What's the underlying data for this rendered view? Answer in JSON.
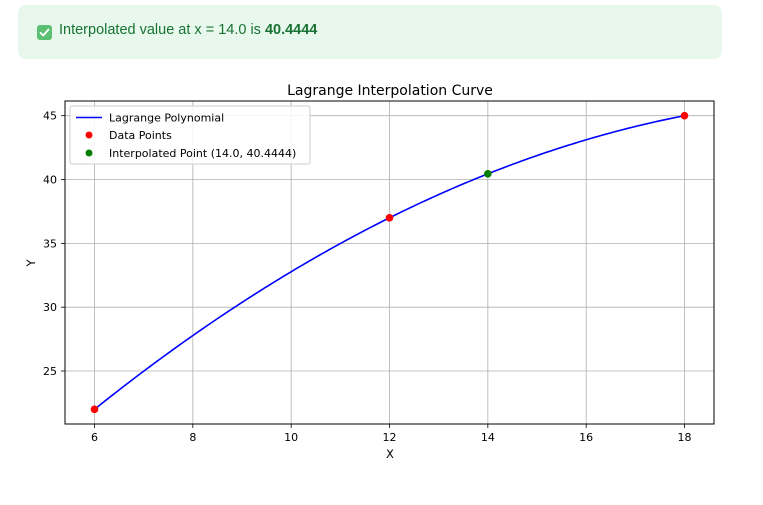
{
  "alert": {
    "icon": "check-square-icon",
    "prefix": "Interpolated value at x = 14.0 is ",
    "value": "40.4444",
    "bg_color": "#e8f8ec",
    "text_color": "#177233"
  },
  "chart_data": {
    "type": "line",
    "title": "Lagrange Interpolation Curve",
    "xlabel": "X",
    "ylabel": "Y",
    "xlim": [
      5.4,
      18.6
    ],
    "ylim": [
      20.85,
      46.15
    ],
    "xticks": [
      6,
      8,
      10,
      12,
      14,
      16,
      18
    ],
    "yticks": [
      25,
      30,
      35,
      40,
      45
    ],
    "grid": true,
    "legend_position": "top-left",
    "series": [
      {
        "name": "Lagrange Polynomial",
        "kind": "line",
        "color": "#0000ff",
        "points": [
          [
            6,
            22
          ],
          [
            12,
            37
          ],
          [
            18,
            45
          ]
        ],
        "description": "quadratic through data points"
      },
      {
        "name": "Data Points",
        "kind": "scatter",
        "color": "#ff0000",
        "x": [
          6,
          12,
          18
        ],
        "y": [
          22,
          37,
          45
        ]
      },
      {
        "name": "Interpolated Point (14.0, 40.4444)",
        "kind": "scatter",
        "color": "#008000",
        "x": [
          14.0
        ],
        "y": [
          40.4444
        ]
      }
    ]
  }
}
